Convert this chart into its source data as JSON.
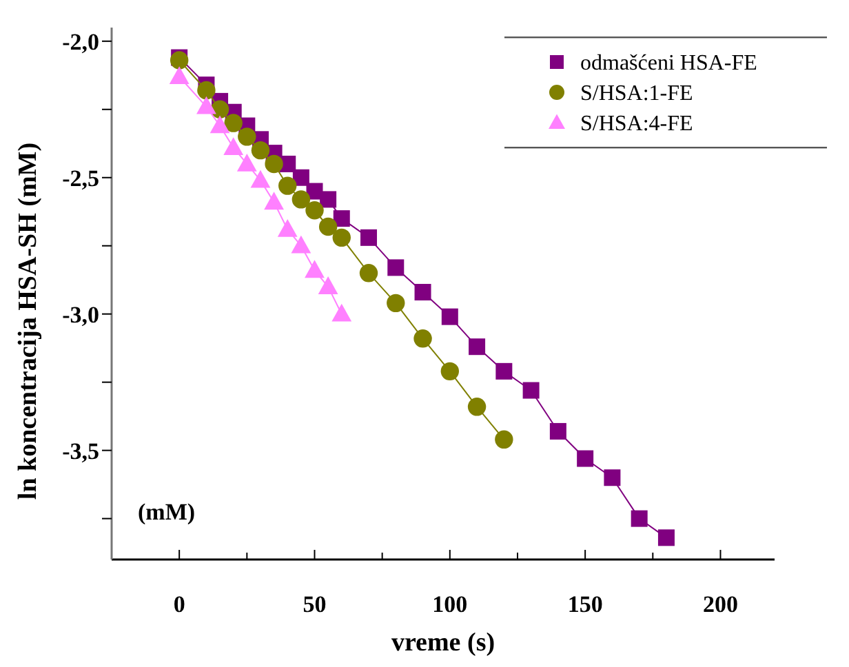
{
  "chart_data": {
    "type": "line",
    "xlabel": "vreme (s)",
    "ylabel": "ln koncentracija HSA-SH (mM)",
    "annotations": [
      "(mM)"
    ],
    "xlim": [
      -25,
      220
    ],
    "ylim": [
      -3.9,
      -1.95
    ],
    "xticks": [
      {
        "value": -25,
        "label": null
      },
      0,
      {
        "value": 25,
        "label": null
      },
      50,
      {
        "value": 75,
        "label": null
      },
      100,
      {
        "value": 125,
        "label": null
      },
      150,
      {
        "value": 175,
        "label": null
      },
      200
    ],
    "yticks": [
      {
        "value": -2.0,
        "label": "-2,0"
      },
      {
        "value": -2.25,
        "label": null
      },
      {
        "value": -2.5,
        "label": "-2,5"
      },
      {
        "value": -2.75,
        "label": null
      },
      {
        "value": -3.0,
        "label": "-3,0"
      },
      {
        "value": -3.25,
        "label": null
      },
      {
        "value": -3.5,
        "label": "-3,5"
      },
      {
        "value": -3.75,
        "label": null
      }
    ],
    "grid": false,
    "legend": "top right",
    "series": [
      {
        "name": "odmašćeni HSA-FE",
        "color": "#800080",
        "marker": "square",
        "x": [
          0,
          10,
          15,
          20,
          25,
          30,
          35,
          40,
          45,
          50,
          55,
          60,
          70,
          80,
          90,
          100,
          110,
          120,
          130,
          140,
          150,
          160,
          170,
          180
        ],
        "values": [
          -2.06,
          -2.16,
          -2.22,
          -2.26,
          -2.31,
          -2.36,
          -2.41,
          -2.45,
          -2.5,
          -2.55,
          -2.58,
          -2.65,
          -2.72,
          -2.83,
          -2.92,
          -3.01,
          -3.12,
          -3.21,
          -3.28,
          -3.43,
          -3.53,
          -3.6,
          -3.75,
          -3.82
        ]
      },
      {
        "name": "S/HSA:1-FE",
        "color": "#808000",
        "marker": "circle",
        "x": [
          0,
          10,
          15,
          20,
          25,
          30,
          35,
          40,
          45,
          50,
          55,
          60,
          70,
          80,
          90,
          100,
          110,
          120
        ],
        "values": [
          -2.07,
          -2.18,
          -2.25,
          -2.3,
          -2.35,
          -2.4,
          -2.45,
          -2.53,
          -2.58,
          -2.62,
          -2.68,
          -2.72,
          -2.85,
          -2.96,
          -3.09,
          -3.21,
          -3.34,
          -3.46
        ]
      },
      {
        "name": "S/HSA:4-FE",
        "color": "#ff80ff",
        "marker": "triangle",
        "x": [
          0,
          10,
          15,
          20,
          25,
          30,
          35,
          40,
          45,
          50,
          55,
          60
        ],
        "values": [
          -2.13,
          -2.24,
          -2.31,
          -2.39,
          -2.45,
          -2.51,
          -2.59,
          -2.69,
          -2.75,
          -2.84,
          -2.9,
          -3.0
        ]
      }
    ]
  }
}
